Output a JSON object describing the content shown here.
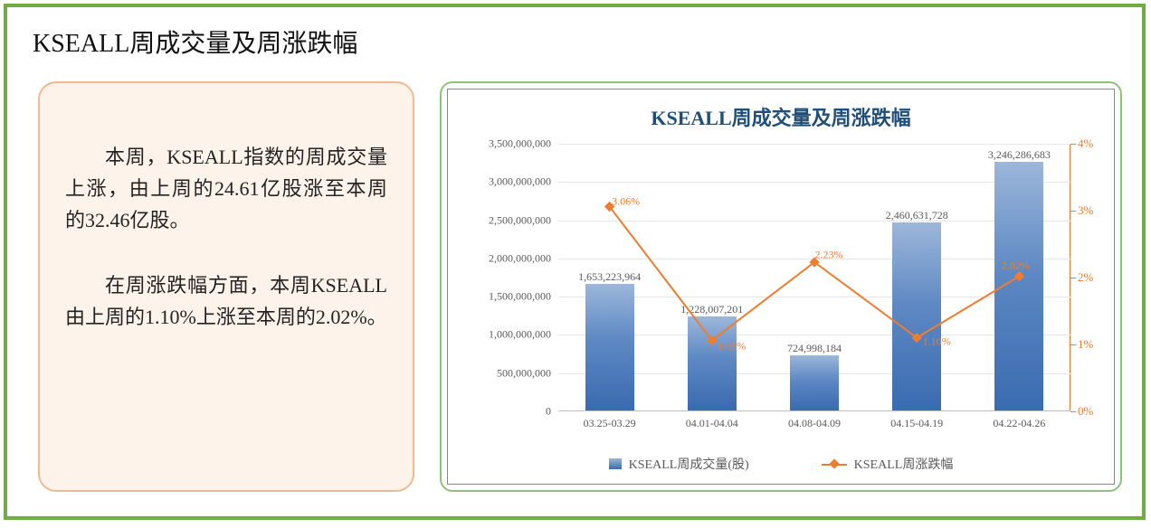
{
  "page": {
    "title": "KSEALL周成交量及周涨跌幅"
  },
  "text_panel": {
    "p1": "本周，KSEALL指数的周成交量上涨，由上周的24.61亿股涨至本周的32.46亿股。",
    "p2": "在周涨跌幅方面，本周KSEALL由上周的1.10%上涨至本周的2.02%。"
  },
  "chart": {
    "title": "KSEALL周成交量及周涨跌幅",
    "type": "bar+line",
    "categories": [
      "03.25-03.29",
      "04.01-04.04",
      "04.08-04.09",
      "04.15-04.19",
      "04.22-04.26"
    ],
    "bar_values": [
      1653223964,
      1228007201,
      724998184,
      2460631728,
      3246286683
    ],
    "bar_labels": [
      "1,653,223,964",
      "1,228,007,201",
      "724,998,184",
      "2,460,631,728",
      "3,246,286,683"
    ],
    "line_values": [
      3.06,
      1.06,
      2.23,
      1.1,
      2.02
    ],
    "line_labels": [
      "3.06%",
      "1.06%",
      "2.23%",
      "1.10%",
      "2.02%"
    ],
    "y_left": {
      "min": 0,
      "max": 3500000000,
      "step": 500000000,
      "ticks": [
        "0",
        "500,000,000",
        "1,000,000,000",
        "1,500,000,000",
        "2,000,000,000",
        "2,500,000,000",
        "3,000,000,000",
        "3,500,000,000"
      ]
    },
    "y_right": {
      "min": 0,
      "max": 4,
      "step": 1,
      "ticks": [
        "0%",
        "1%",
        "2%",
        "3%",
        "4%"
      ]
    },
    "bar_color_top": "#9cb7da",
    "bar_color_bottom": "#3a6ab0",
    "line_color": "#ed7d31",
    "grid_color": "#e6e6e6",
    "axis_color": "#bfbfbf",
    "title_color": "#1f4e79",
    "title_fontsize": 22,
    "axis_fontsize": 12,
    "bar_width_ratio": 0.48,
    "legend": {
      "bar": "KSEALL周成交量(股)",
      "line": "KSEALL周涨跌幅"
    }
  },
  "colors": {
    "outer_border": "#6fac46",
    "text_panel_border": "#f1b98e",
    "text_panel_bg": "#fdf3ea",
    "chart_panel_border": "#8ec27a"
  }
}
